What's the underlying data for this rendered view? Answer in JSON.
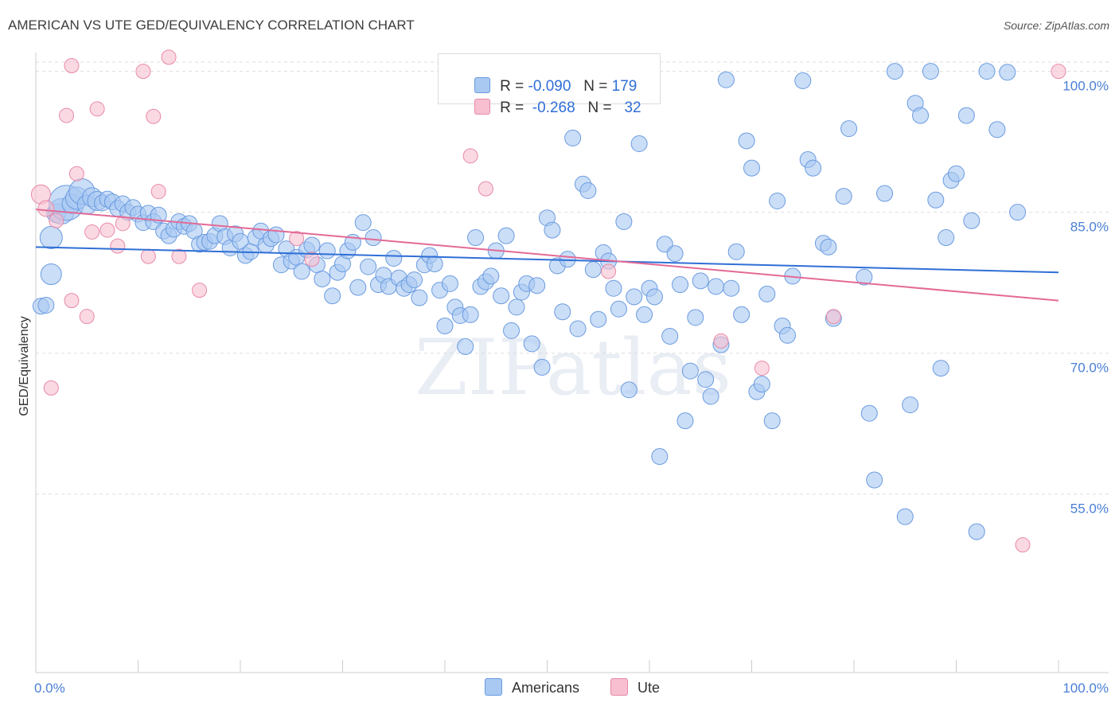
{
  "title": "AMERICAN VS UTE GED/EQUIVALENCY CORRELATION CHART",
  "source": "Source: ZipAtlas.com",
  "legend_top": {
    "rows": [
      {
        "r_label": "R =",
        "r_value": "-0.090",
        "n_label": "N =",
        "n_value": "179"
      },
      {
        "r_label": "R =",
        "r_value": "-0.268",
        "n_label": "N =",
        "n_value": "32"
      }
    ]
  },
  "legend_bottom": {
    "americans": "Americans",
    "ute": "Ute"
  },
  "colors": {
    "americans_fill": "#a9c8f2",
    "americans_stroke": "#6a9be0",
    "americans_line": "#2f6fd6",
    "ute_fill": "#f7bfd0",
    "ute_stroke": "#e88aa8",
    "ute_line": "#e36a96",
    "axis_label": "#4a7fd6",
    "grid": "#dddddd"
  },
  "chart_data": {
    "type": "scatter",
    "title": "AMERICAN VS UTE GED/EQUIVALENCY CORRELATION CHART",
    "xlabel": "",
    "ylabel": "GED/Equivalency",
    "xlim": [
      0,
      100
    ],
    "ylim": [
      36,
      102
    ],
    "x_tick_labels": [
      "0.0%",
      "100.0%"
    ],
    "y_ticks": [
      55,
      70,
      85,
      100
    ],
    "y_tick_labels": [
      "55.0%",
      "70.0%",
      "85.0%",
      "100.0%"
    ],
    "grid": true,
    "legend_position": "top-center",
    "watermark": "ZIPatlas",
    "series": [
      {
        "name": "Americans",
        "trend": {
          "x": [
            0,
            100
          ],
          "y": [
            81.3,
            78.6
          ]
        },
        "points": [
          [
            0.5,
            75.0,
            10
          ],
          [
            1.0,
            75.1,
            10
          ],
          [
            1.5,
            82.3,
            14
          ],
          [
            1.5,
            78.4,
            13
          ],
          [
            2.0,
            84.9,
            12
          ],
          [
            2.5,
            85.1,
            16
          ],
          [
            3.0,
            86.0,
            22
          ],
          [
            3.5,
            85.9,
            12
          ],
          [
            4.0,
            86.5,
            14
          ],
          [
            4.5,
            87.2,
            16
          ],
          [
            5.0,
            85.8,
            12
          ],
          [
            5.5,
            86.6,
            12
          ],
          [
            6.0,
            86.2,
            12
          ],
          [
            6.5,
            86.0,
            10
          ],
          [
            7.0,
            86.4,
            10
          ],
          [
            7.5,
            86.1,
            10
          ],
          [
            8.0,
            85.4,
            10
          ],
          [
            8.5,
            85.9,
            10
          ],
          [
            9.0,
            85.0,
            10
          ],
          [
            9.5,
            85.5,
            10
          ],
          [
            10.0,
            84.8,
            10
          ],
          [
            10.5,
            83.9,
            10
          ],
          [
            11.0,
            84.9,
            10
          ],
          [
            11.5,
            84.0,
            10
          ],
          [
            12.0,
            84.7,
            10
          ],
          [
            12.5,
            83.0,
            10
          ],
          [
            13.0,
            82.5,
            10
          ],
          [
            13.5,
            83.2,
            10
          ],
          [
            14.0,
            84.0,
            10
          ],
          [
            14.5,
            83.5,
            10
          ],
          [
            15.0,
            83.8,
            10
          ],
          [
            15.5,
            83.0,
            10
          ],
          [
            16.0,
            81.6,
            10
          ],
          [
            16.5,
            81.8,
            10
          ],
          [
            17.0,
            81.9,
            10
          ],
          [
            17.5,
            82.5,
            10
          ],
          [
            18.0,
            83.8,
            10
          ],
          [
            18.5,
            82.4,
            10
          ],
          [
            19.0,
            81.2,
            10
          ],
          [
            19.5,
            82.7,
            10
          ],
          [
            20.0,
            81.9,
            10
          ],
          [
            20.5,
            80.4,
            10
          ],
          [
            21.0,
            80.8,
            10
          ],
          [
            21.5,
            82.3,
            10
          ],
          [
            22.0,
            83.0,
            10
          ],
          [
            22.5,
            81.5,
            10
          ],
          [
            23.0,
            82.2,
            10
          ],
          [
            23.5,
            82.6,
            10
          ],
          [
            24.0,
            79.4,
            10
          ],
          [
            24.5,
            81.1,
            10
          ],
          [
            25.0,
            79.8,
            10
          ],
          [
            25.5,
            80.2,
            10
          ],
          [
            26.0,
            78.7,
            10
          ],
          [
            26.5,
            81.0,
            10
          ],
          [
            27.0,
            81.5,
            10
          ],
          [
            27.5,
            79.4,
            10
          ],
          [
            28.0,
            77.9,
            10
          ],
          [
            28.5,
            80.9,
            10
          ],
          [
            29.0,
            76.1,
            10
          ],
          [
            29.5,
            78.6,
            10
          ],
          [
            30.0,
            79.5,
            10
          ],
          [
            30.5,
            80.9,
            10
          ],
          [
            31.0,
            81.8,
            10
          ],
          [
            31.5,
            77.0,
            10
          ],
          [
            32.0,
            83.9,
            10
          ],
          [
            32.5,
            79.2,
            10
          ],
          [
            33.0,
            82.3,
            10
          ],
          [
            33.5,
            77.3,
            10
          ],
          [
            34.0,
            78.3,
            10
          ],
          [
            34.5,
            77.1,
            10
          ],
          [
            35.0,
            80.1,
            10
          ],
          [
            35.5,
            78.0,
            10
          ],
          [
            36.0,
            76.9,
            10
          ],
          [
            36.5,
            77.3,
            10
          ],
          [
            37.0,
            77.8,
            10
          ],
          [
            37.5,
            75.9,
            10
          ],
          [
            38.0,
            79.4,
            10
          ],
          [
            38.5,
            80.4,
            10
          ],
          [
            39.0,
            79.5,
            10
          ],
          [
            39.5,
            76.7,
            10
          ],
          [
            40.0,
            72.9,
            10
          ],
          [
            40.5,
            77.4,
            10
          ],
          [
            41.0,
            74.9,
            10
          ],
          [
            41.5,
            74.0,
            10
          ],
          [
            42.0,
            70.7,
            10
          ],
          [
            42.5,
            74.1,
            10
          ],
          [
            43.0,
            82.3,
            10
          ],
          [
            43.5,
            77.1,
            10
          ],
          [
            44.0,
            77.6,
            10
          ],
          [
            44.5,
            78.2,
            10
          ],
          [
            45.0,
            80.9,
            10
          ],
          [
            45.5,
            76.1,
            10
          ],
          [
            46.0,
            82.5,
            10
          ],
          [
            46.5,
            72.4,
            10
          ],
          [
            47.0,
            74.9,
            10
          ],
          [
            47.5,
            76.5,
            10
          ],
          [
            48.0,
            77.4,
            10
          ],
          [
            48.5,
            71.0,
            10
          ],
          [
            49.0,
            77.2,
            10
          ],
          [
            49.5,
            68.5,
            10
          ],
          [
            50.0,
            84.4,
            10
          ],
          [
            50.5,
            83.1,
            10
          ],
          [
            51.0,
            79.3,
            10
          ],
          [
            51.5,
            74.4,
            10
          ],
          [
            52.0,
            80.0,
            10
          ],
          [
            52.5,
            92.9,
            10
          ],
          [
            53.0,
            72.6,
            10
          ],
          [
            53.5,
            88.0,
            10
          ],
          [
            54.0,
            87.3,
            10
          ],
          [
            54.5,
            78.9,
            10
          ],
          [
            55.0,
            73.6,
            10
          ],
          [
            55.5,
            80.7,
            10
          ],
          [
            56.0,
            79.8,
            10
          ],
          [
            56.5,
            76.9,
            10
          ],
          [
            57.0,
            74.7,
            10
          ],
          [
            57.5,
            84.0,
            10
          ],
          [
            58.0,
            66.1,
            10
          ],
          [
            58.5,
            76.0,
            10
          ],
          [
            59.0,
            92.3,
            10
          ],
          [
            59.5,
            74.1,
            10
          ],
          [
            60.0,
            76.9,
            10
          ],
          [
            60.5,
            76.0,
            10
          ],
          [
            61.0,
            59.0,
            10
          ],
          [
            61.5,
            81.6,
            10
          ],
          [
            62.0,
            71.8,
            10
          ],
          [
            62.5,
            80.6,
            10
          ],
          [
            63.0,
            77.3,
            10
          ],
          [
            63.5,
            62.8,
            10
          ],
          [
            64.0,
            68.1,
            10
          ],
          [
            64.5,
            73.8,
            10
          ],
          [
            65.0,
            77.7,
            10
          ],
          [
            65.5,
            67.2,
            10
          ],
          [
            66.0,
            65.4,
            10
          ],
          [
            66.5,
            77.1,
            10
          ],
          [
            67.0,
            70.9,
            10
          ],
          [
            67.5,
            99.1,
            10
          ],
          [
            68.0,
            76.9,
            10
          ],
          [
            68.5,
            80.8,
            10
          ],
          [
            69.0,
            74.1,
            10
          ],
          [
            69.5,
            92.6,
            10
          ],
          [
            70.0,
            89.7,
            10
          ],
          [
            70.5,
            65.9,
            10
          ],
          [
            71.0,
            66.7,
            10
          ],
          [
            71.5,
            76.3,
            10
          ],
          [
            72.0,
            62.8,
            10
          ],
          [
            72.5,
            86.2,
            10
          ],
          [
            73.0,
            72.9,
            10
          ],
          [
            73.5,
            71.9,
            10
          ],
          [
            74.0,
            78.2,
            10
          ],
          [
            75.0,
            99.0,
            10
          ],
          [
            75.5,
            90.6,
            10
          ],
          [
            76.0,
            89.7,
            10
          ],
          [
            77.0,
            81.7,
            10
          ],
          [
            77.5,
            81.3,
            10
          ],
          [
            78.0,
            73.7,
            10
          ],
          [
            79.0,
            86.7,
            10
          ],
          [
            79.5,
            93.9,
            10
          ],
          [
            81.0,
            78.1,
            10
          ],
          [
            81.5,
            63.6,
            10
          ],
          [
            82.0,
            56.5,
            10
          ],
          [
            83.0,
            87.0,
            10
          ],
          [
            84.0,
            100.0,
            10
          ],
          [
            85.0,
            52.6,
            10
          ],
          [
            85.5,
            64.5,
            10
          ],
          [
            86.0,
            96.6,
            10
          ],
          [
            86.5,
            95.3,
            10
          ],
          [
            87.5,
            100.0,
            10
          ],
          [
            88.0,
            86.3,
            10
          ],
          [
            88.5,
            68.4,
            10
          ],
          [
            89.0,
            82.3,
            10
          ],
          [
            89.5,
            88.4,
            10
          ],
          [
            90.0,
            89.1,
            10
          ],
          [
            91.0,
            95.3,
            10
          ],
          [
            91.5,
            84.1,
            10
          ],
          [
            92.0,
            51.0,
            10
          ],
          [
            93.0,
            100.0,
            10
          ],
          [
            94.0,
            93.8,
            10
          ],
          [
            95.0,
            99.9,
            10
          ],
          [
            96.0,
            85.0,
            10
          ]
        ]
      },
      {
        "name": "Ute",
        "trend": {
          "x": [
            0,
            100
          ],
          "y": [
            85.3,
            75.6
          ]
        },
        "points": [
          [
            0.5,
            86.9,
            12
          ],
          [
            1.0,
            85.4,
            10
          ],
          [
            1.5,
            66.3,
            9
          ],
          [
            2.0,
            84.1,
            9
          ],
          [
            3.0,
            95.3,
            9
          ],
          [
            3.5,
            75.6,
            9
          ],
          [
            4.0,
            89.1,
            9
          ],
          [
            5.0,
            73.9,
            9
          ],
          [
            5.5,
            82.9,
            9
          ],
          [
            6.0,
            96.0,
            9
          ],
          [
            7.0,
            83.1,
            9
          ],
          [
            8.0,
            81.4,
            9
          ],
          [
            8.5,
            83.8,
            9
          ],
          [
            10.5,
            100.0,
            9
          ],
          [
            11.0,
            80.3,
            9
          ],
          [
            11.5,
            95.2,
            9
          ],
          [
            12.0,
            87.2,
            9
          ],
          [
            14.0,
            80.3,
            9
          ],
          [
            16.0,
            76.7,
            9
          ],
          [
            25.5,
            82.2,
            9
          ],
          [
            27.0,
            80.0,
            9
          ],
          [
            42.5,
            91.0,
            9
          ],
          [
            44.0,
            87.5,
            9
          ],
          [
            52.0,
            100.0,
            9
          ],
          [
            56.0,
            78.7,
            9
          ],
          [
            67.0,
            71.3,
            9
          ],
          [
            71.0,
            68.4,
            9
          ],
          [
            78.0,
            73.9,
            9
          ],
          [
            96.5,
            49.6,
            9
          ],
          [
            100.0,
            100.0,
            9
          ],
          [
            3.5,
            100.6,
            9
          ],
          [
            13.0,
            101.5,
            9
          ]
        ]
      }
    ]
  }
}
